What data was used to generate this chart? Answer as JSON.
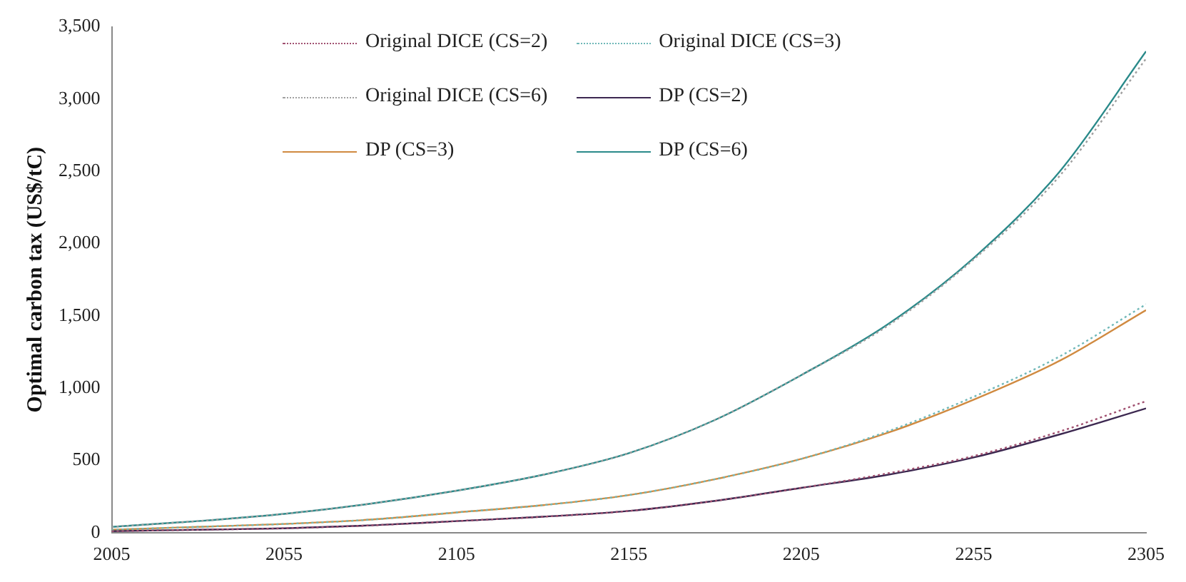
{
  "chart_data": {
    "type": "line",
    "ylabel": "Optimal carbon tax (US$/tC)",
    "x": [
      2005,
      2030,
      2055,
      2080,
      2105,
      2130,
      2155,
      2180,
      2205,
      2230,
      2255,
      2280,
      2305
    ],
    "xlim": [
      2005,
      2305
    ],
    "xticks": [
      2005,
      2055,
      2105,
      2155,
      2205,
      2255,
      2305
    ],
    "ylim": [
      0,
      3500
    ],
    "yticks": [
      0,
      500,
      {
        "value": 1000,
        "label": "1,000"
      },
      {
        "value": 1500,
        "label": "1,500"
      },
      {
        "value": 2000,
        "label": "2,000"
      },
      {
        "value": 2500,
        "label": "2,500"
      },
      {
        "value": 3000,
        "label": "3,000"
      },
      {
        "value": 3500,
        "label": "3,500"
      }
    ],
    "grid": false,
    "legend": "top",
    "marker": "none",
    "series": [
      {
        "name": "Original DICE (CS=2)",
        "color": "#a05070",
        "line_style": "dotted",
        "values": [
          10,
          20,
          30,
          50,
          80,
          110,
          150,
          220,
          310,
          410,
          530,
          700,
          910
        ]
      },
      {
        "name": "Original DICE (CS=3)",
        "color": "#70b8b8",
        "line_style": "dotted",
        "values": [
          20,
          40,
          60,
          90,
          140,
          190,
          260,
          370,
          510,
          700,
          940,
          1220,
          1580
        ]
      },
      {
        "name": "Original DICE (CS=6)",
        "color": "#a0a0a0",
        "line_style": "dotted",
        "values": [
          40,
          80,
          130,
          200,
          290,
          400,
          550,
          780,
          1090,
          1430,
          1890,
          2470,
          3280
        ]
      },
      {
        "name": "DP (CS=2)",
        "color": "#3c2850",
        "line_style": "solid",
        "values": [
          10,
          20,
          30,
          50,
          80,
          110,
          150,
          220,
          310,
          400,
          520,
          680,
          860
        ]
      },
      {
        "name": "DP (CS=3)",
        "color": "#d08a40",
        "line_style": "solid",
        "values": [
          20,
          40,
          60,
          90,
          140,
          190,
          260,
          370,
          510,
          690,
          920,
          1190,
          1540
        ]
      },
      {
        "name": "DP (CS=6)",
        "color": "#2a8a8a",
        "line_style": "solid",
        "values": [
          40,
          80,
          130,
          200,
          290,
          400,
          550,
          780,
          1090,
          1440,
          1900,
          2500,
          3330
        ]
      }
    ]
  }
}
